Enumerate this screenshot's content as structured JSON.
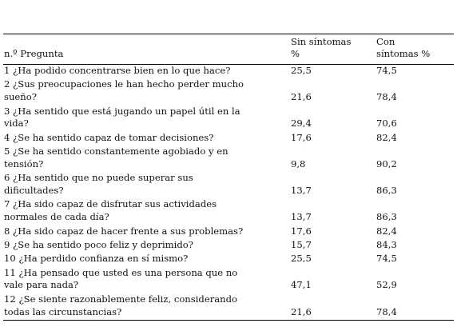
{
  "table": {
    "header": {
      "number": "n.º",
      "question": "Pregunta",
      "without": [
        "Sin síntomas",
        "%"
      ],
      "with": [
        "Con",
        "síntomas %"
      ]
    },
    "rows": [
      {
        "question": [
          "1 ¿Ha podido concentrarse bien en lo que hace?"
        ],
        "without": "25,5",
        "with": "74,5"
      },
      {
        "question": [
          "2 ¿Sus preocupaciones le han hecho perder mucho",
          "sueño?"
        ],
        "without": "21,6",
        "with": "78,4"
      },
      {
        "question": [
          "3 ¿Ha sentido que está jugando un papel útil en la",
          "vida?"
        ],
        "without": "29,4",
        "with": "70,6"
      },
      {
        "question": [
          "4 ¿Se ha sentido capaz de tomar decisiones?"
        ],
        "without": "17,6",
        "with": "82,4"
      },
      {
        "question": [
          "5 ¿Se ha sentido constantemente agobiado y en",
          "tensión?"
        ],
        "without": "9,8",
        "with": "90,2"
      },
      {
        "question": [
          "6 ¿Ha sentido que no puede superar sus",
          "dificultades?"
        ],
        "without": "13,7",
        "with": "86,3"
      },
      {
        "question": [
          "7 ¿Ha sido capaz de disfrutar sus actividades",
          "normales de cada día?"
        ],
        "without": "13,7",
        "with": "86,3"
      },
      {
        "question": [
          "8 ¿Ha sido capaz de hacer frente a sus problemas?"
        ],
        "without": "17,6",
        "with": "82,4"
      },
      {
        "question": [
          "9 ¿Se ha sentido poco feliz y deprimido?"
        ],
        "without": "15,7",
        "with": "84,3"
      },
      {
        "question": [
          "10 ¿Ha perdido confianza en sí mismo?"
        ],
        "without": "25,5",
        "with": "74,5"
      },
      {
        "question": [
          "11 ¿Ha pensado que usted es una persona que no",
          "vale para nada?"
        ],
        "without": "47,1",
        "with": "52,9"
      },
      {
        "question": [
          "12 ¿Se siente razonablemente feliz, considerando",
          "todas las circunstancias?"
        ],
        "without": "21,6",
        "with": "78,4"
      }
    ]
  }
}
